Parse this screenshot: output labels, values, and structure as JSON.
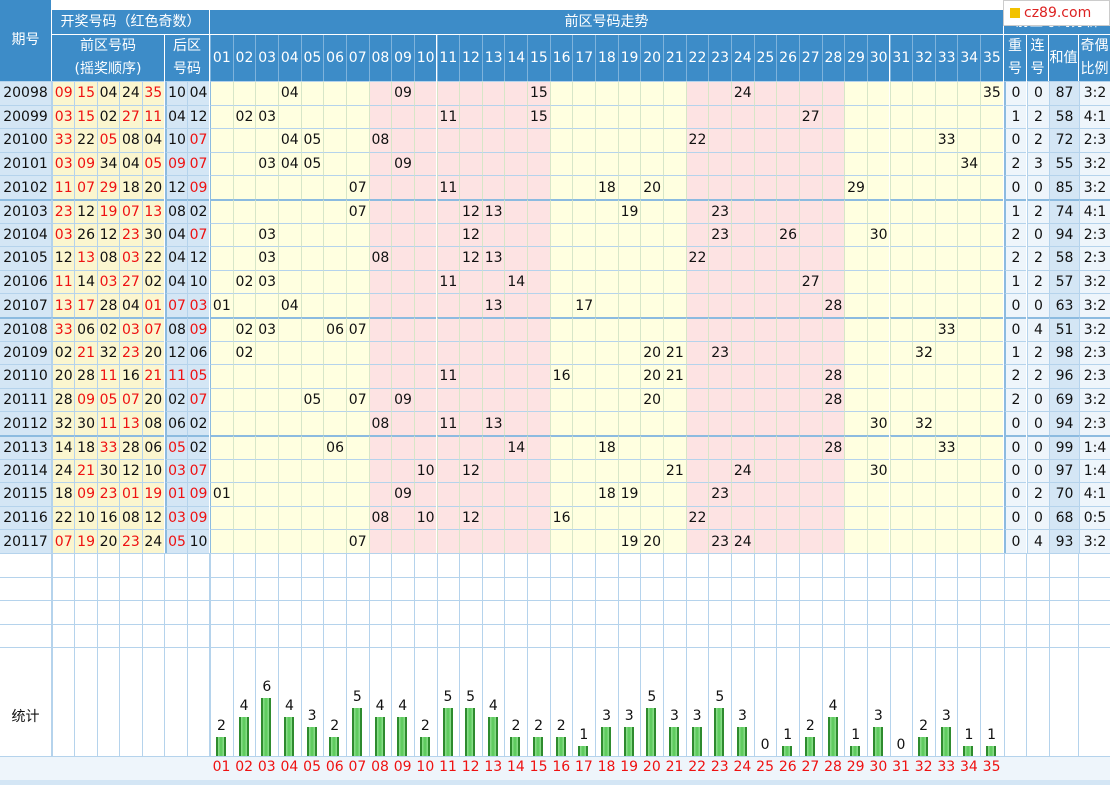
{
  "headers": {
    "period": "期号",
    "draw": "开奖号码（红色奇数）",
    "front": "前区号码",
    "front_sub": "(摇奖顺序)",
    "back": "后区",
    "back_sub": "号码",
    "trend": "前区号码走势",
    "analysis": "前区号码分析",
    "repeat": [
      "重",
      "号"
    ],
    "consec": [
      "连",
      "号"
    ],
    "sum": "和值",
    "oddeven": [
      "奇偶",
      "比例"
    ],
    "stats": "统计"
  },
  "watermark": "cz89.com",
  "columns": [
    "01",
    "02",
    "03",
    "04",
    "05",
    "06",
    "07",
    "08",
    "09",
    "10",
    "11",
    "12",
    "13",
    "14",
    "15",
    "16",
    "17",
    "18",
    "19",
    "20",
    "21",
    "22",
    "23",
    "24",
    "25",
    "26",
    "27",
    "28",
    "29",
    "30",
    "31",
    "32",
    "33",
    "34",
    "35"
  ],
  "rows": [
    {
      "period": "20098",
      "front": [
        "09",
        "15",
        "04",
        "24",
        "35"
      ],
      "back": [
        "10",
        "04"
      ],
      "repeat": "0",
      "consec": "0",
      "sum": "87",
      "ratio": "3:2"
    },
    {
      "period": "20099",
      "front": [
        "03",
        "15",
        "02",
        "27",
        "11"
      ],
      "back": [
        "04",
        "12"
      ],
      "repeat": "1",
      "consec": "2",
      "sum": "58",
      "ratio": "4:1"
    },
    {
      "period": "20100",
      "front": [
        "33",
        "22",
        "05",
        "08",
        "04"
      ],
      "back": [
        "10",
        "07"
      ],
      "repeat": "0",
      "consec": "2",
      "sum": "72",
      "ratio": "2:3"
    },
    {
      "period": "20101",
      "front": [
        "03",
        "09",
        "34",
        "04",
        "05"
      ],
      "back": [
        "09",
        "07"
      ],
      "repeat": "2",
      "consec": "3",
      "sum": "55",
      "ratio": "3:2"
    },
    {
      "period": "20102",
      "front": [
        "11",
        "07",
        "29",
        "18",
        "20"
      ],
      "back": [
        "12",
        "09"
      ],
      "repeat": "0",
      "consec": "0",
      "sum": "85",
      "ratio": "3:2"
    },
    {
      "period": "20103",
      "front": [
        "23",
        "12",
        "19",
        "07",
        "13"
      ],
      "back": [
        "08",
        "02"
      ],
      "repeat": "1",
      "consec": "2",
      "sum": "74",
      "ratio": "4:1"
    },
    {
      "period": "20104",
      "front": [
        "03",
        "26",
        "12",
        "23",
        "30"
      ],
      "back": [
        "04",
        "07"
      ],
      "repeat": "2",
      "consec": "0",
      "sum": "94",
      "ratio": "2:3"
    },
    {
      "period": "20105",
      "front": [
        "12",
        "13",
        "08",
        "03",
        "22"
      ],
      "back": [
        "04",
        "12"
      ],
      "repeat": "2",
      "consec": "2",
      "sum": "58",
      "ratio": "2:3"
    },
    {
      "period": "20106",
      "front": [
        "11",
        "14",
        "03",
        "27",
        "02"
      ],
      "back": [
        "04",
        "10"
      ],
      "repeat": "1",
      "consec": "2",
      "sum": "57",
      "ratio": "3:2"
    },
    {
      "period": "20107",
      "front": [
        "13",
        "17",
        "28",
        "04",
        "01"
      ],
      "back": [
        "07",
        "03"
      ],
      "repeat": "0",
      "consec": "0",
      "sum": "63",
      "ratio": "3:2"
    },
    {
      "period": "20108",
      "front": [
        "33",
        "06",
        "02",
        "03",
        "07"
      ],
      "back": [
        "08",
        "09"
      ],
      "repeat": "0",
      "consec": "4",
      "sum": "51",
      "ratio": "3:2"
    },
    {
      "period": "20109",
      "front": [
        "02",
        "21",
        "32",
        "23",
        "20"
      ],
      "back": [
        "12",
        "06"
      ],
      "repeat": "1",
      "consec": "2",
      "sum": "98",
      "ratio": "2:3"
    },
    {
      "period": "20110",
      "front": [
        "20",
        "28",
        "11",
        "16",
        "21"
      ],
      "back": [
        "11",
        "05"
      ],
      "repeat": "2",
      "consec": "2",
      "sum": "96",
      "ratio": "2:3"
    },
    {
      "period": "20111",
      "front": [
        "28",
        "09",
        "05",
        "07",
        "20"
      ],
      "back": [
        "02",
        "07"
      ],
      "repeat": "2",
      "consec": "0",
      "sum": "69",
      "ratio": "3:2"
    },
    {
      "period": "20112",
      "front": [
        "32",
        "30",
        "11",
        "13",
        "08"
      ],
      "back": [
        "06",
        "02"
      ],
      "repeat": "0",
      "consec": "0",
      "sum": "94",
      "ratio": "2:3"
    },
    {
      "period": "20113",
      "front": [
        "14",
        "18",
        "33",
        "28",
        "06"
      ],
      "back": [
        "05",
        "02"
      ],
      "repeat": "0",
      "consec": "0",
      "sum": "99",
      "ratio": "1:4"
    },
    {
      "period": "20114",
      "front": [
        "24",
        "21",
        "30",
        "12",
        "10"
      ],
      "back": [
        "03",
        "07"
      ],
      "repeat": "0",
      "consec": "0",
      "sum": "97",
      "ratio": "1:4"
    },
    {
      "period": "20115",
      "front": [
        "18",
        "09",
        "23",
        "01",
        "19"
      ],
      "back": [
        "01",
        "09"
      ],
      "repeat": "0",
      "consec": "2",
      "sum": "70",
      "ratio": "4:1"
    },
    {
      "period": "20116",
      "front": [
        "22",
        "10",
        "16",
        "08",
        "12"
      ],
      "back": [
        "03",
        "09"
      ],
      "repeat": "0",
      "consec": "0",
      "sum": "68",
      "ratio": "0:5"
    },
    {
      "period": "20117",
      "front": [
        "07",
        "19",
        "20",
        "23",
        "24"
      ],
      "back": [
        "05",
        "10"
      ],
      "repeat": "0",
      "consec": "4",
      "sum": "93",
      "ratio": "3:2"
    }
  ],
  "colors": {
    "header_blue": "#3d8cc8",
    "period_bg": "#d4e6f5",
    "draw_bg": "#fbf6cf",
    "trend_yellow": "#ffffe0",
    "trend_pink": "#fde3e3",
    "grid_line": "#b5d3ec",
    "odd_red": "#ee1111",
    "bar_green": "#56c856"
  },
  "chart_data": {
    "type": "bar",
    "title": "统计",
    "categories": [
      "01",
      "02",
      "03",
      "04",
      "05",
      "06",
      "07",
      "08",
      "09",
      "10",
      "11",
      "12",
      "13",
      "14",
      "15",
      "16",
      "17",
      "18",
      "19",
      "20",
      "21",
      "22",
      "23",
      "24",
      "25",
      "26",
      "27",
      "28",
      "29",
      "30",
      "31",
      "32",
      "33",
      "34",
      "35"
    ],
    "values": [
      2,
      4,
      6,
      4,
      3,
      2,
      5,
      4,
      4,
      2,
      5,
      5,
      4,
      2,
      2,
      2,
      1,
      3,
      3,
      5,
      3,
      3,
      5,
      3,
      0,
      1,
      2,
      4,
      1,
      3,
      0,
      2,
      3,
      1,
      1
    ],
    "xlabel": "",
    "ylabel": "",
    "ylim": [
      0,
      6
    ],
    "grid": true
  }
}
